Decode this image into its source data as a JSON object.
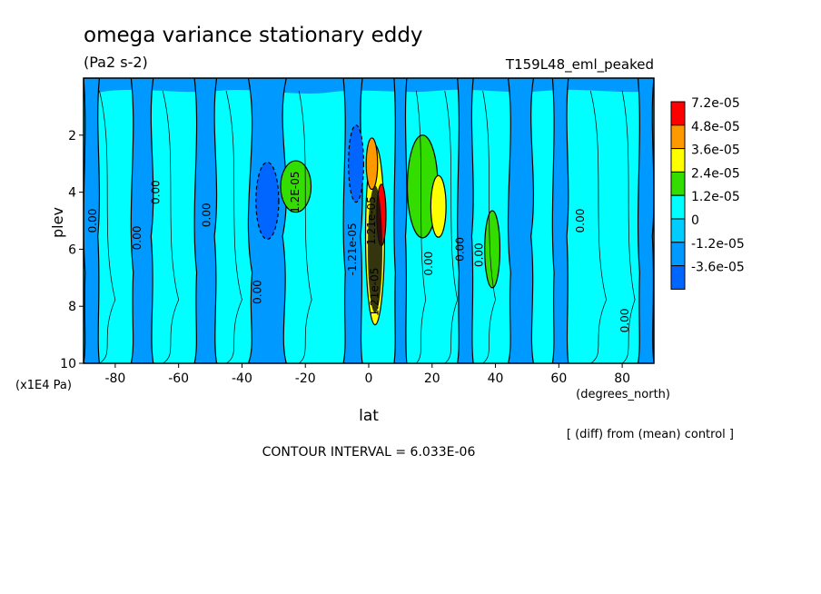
{
  "chart_data": {
    "type": "heatmap",
    "title": "omega variance stationary eddy",
    "units": "(Pa2 s-2)",
    "run_label": "T159L48_eml_peaked",
    "xlabel": "lat",
    "x_units": "(degrees_north)",
    "ylabel": "plev",
    "y_units": "(x1E4 Pa)",
    "x_ticks": [
      "-80",
      "-60",
      "-40",
      "-20",
      "0",
      "20",
      "40",
      "60",
      "80"
    ],
    "y_ticks": [
      "2",
      "4",
      "6",
      "8",
      "10"
    ],
    "xlim": [
      -90,
      90
    ],
    "ylim": [
      10,
      0
    ],
    "legend_levels": [
      "7.2e-05",
      "4.8e-05",
      "3.6e-05",
      "2.4e-05",
      "1.2e-05",
      "0",
      "-1.2e-05",
      "-3.6e-05"
    ],
    "legend_colors": [
      "#ff0000",
      "#ff9900",
      "#ffff00",
      "#33dd00",
      "#00ffff",
      "#00ccff",
      "#0099ff",
      "#0066ff"
    ],
    "background_color": "#00ffff",
    "contour_labels": [
      "0.00",
      "0.00",
      "0.00",
      "0.00",
      "0.00",
      "1.2E-05",
      "-1.21e-05",
      "1.21e-05",
      "1.21e-05",
      "0.00",
      "0.00",
      "0.00",
      "0.00",
      "0.00"
    ],
    "note": "[ (diff) from (mean) control ]",
    "contour_interval_text": "CONTOUR INTERVAL = 6.033E-06",
    "features": [
      {
        "kind": "neg",
        "lat": -32,
        "p": 4.3,
        "w": 3,
        "h": 1.5,
        "level": 2
      },
      {
        "kind": "neg",
        "lat": -4,
        "p": 3.0,
        "w": 2,
        "h": 1.5,
        "level": 2
      },
      {
        "kind": "pos",
        "lat": 17,
        "p": 3.8,
        "w": 4,
        "h": 2.0,
        "level": 1
      },
      {
        "kind": "pos",
        "lat": 22,
        "p": 4.5,
        "w": 2,
        "h": 1.2,
        "level": 2
      },
      {
        "kind": "pos",
        "lat": -23,
        "p": 3.8,
        "w": 4,
        "h": 1.0,
        "level": 1
      },
      {
        "kind": "pos",
        "lat": 39,
        "p": 6.0,
        "w": 2,
        "h": 1.5,
        "level": 1
      },
      {
        "kind": "pos",
        "lat": 2,
        "p": 5.5,
        "w": 2.5,
        "h": 3.5,
        "level": 2
      },
      {
        "kind": "pos",
        "lat": 1,
        "p": 3.0,
        "w": 1.5,
        "h": 1.0,
        "level": 3
      },
      {
        "kind": "pos",
        "lat": 4,
        "p": 4.8,
        "w": 1.2,
        "h": 1.2,
        "level": 4
      }
    ]
  }
}
